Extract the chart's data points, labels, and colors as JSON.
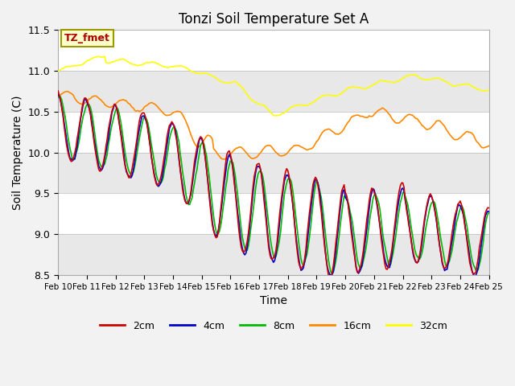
{
  "title": "Tonzi Soil Temperature Set A",
  "xlabel": "Time",
  "ylabel": "Soil Temperature (C)",
  "ylim": [
    8.5,
    11.5
  ],
  "xlim": [
    0,
    360
  ],
  "x_tick_labels": [
    "Feb 10",
    "Feb 11",
    "Feb 12",
    "Feb 13",
    "Feb 14",
    "Feb 15",
    "Feb 16",
    "Feb 17",
    "Feb 18",
    "Feb 19",
    "Feb 20",
    "Feb 21",
    "Feb 22",
    "Feb 23",
    "Feb 24",
    "Feb 25"
  ],
  "x_tick_positions": [
    0,
    24,
    48,
    72,
    96,
    120,
    144,
    168,
    192,
    216,
    240,
    264,
    288,
    312,
    336,
    360
  ],
  "y_ticks": [
    8.5,
    9.0,
    9.5,
    10.0,
    10.5,
    11.0,
    11.5
  ],
  "colors": {
    "2cm": "#cc0000",
    "4cm": "#0000cc",
    "8cm": "#00bb00",
    "16cm": "#ff8800",
    "32cm": "#ffff00"
  },
  "legend_labels": [
    "2cm",
    "4cm",
    "8cm",
    "16cm",
    "32cm"
  ],
  "annotation_text": "TZ_fmet",
  "annotation_color": "#aa0000",
  "annotation_bg": "#ffffcc",
  "annotation_border": "#999900",
  "plot_bg": "#e8e8e8",
  "fig_bg": "#f2f2f2",
  "white_band_color": "#ffffff",
  "line_width": 1.2
}
